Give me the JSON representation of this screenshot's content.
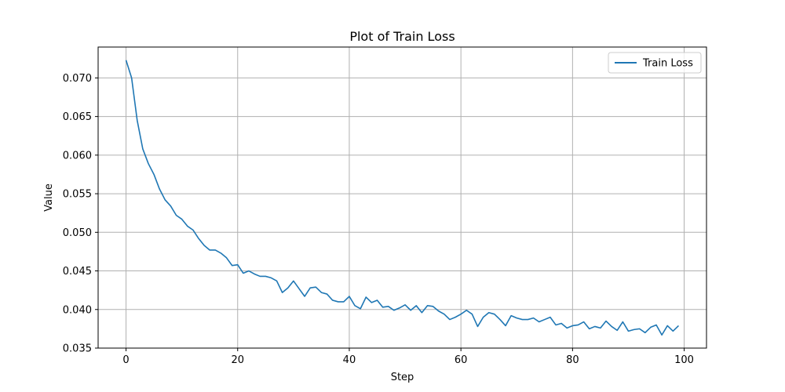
{
  "chart_data": {
    "type": "line",
    "title": "Plot of Train Loss",
    "xlabel": "Step",
    "ylabel": "Value",
    "xlim": [
      -5,
      104
    ],
    "ylim": [
      0.035,
      0.074
    ],
    "xticks": [
      0,
      20,
      40,
      60,
      80,
      100
    ],
    "yticks": [
      0.035,
      0.04,
      0.045,
      0.05,
      0.055,
      0.06,
      0.065,
      0.07
    ],
    "xtick_labels": [
      "0",
      "20",
      "40",
      "60",
      "80",
      "100"
    ],
    "ytick_labels": [
      "0.035",
      "0.040",
      "0.045",
      "0.050",
      "0.055",
      "0.060",
      "0.065",
      "0.070"
    ],
    "grid": true,
    "legend_position": "top-right",
    "series": [
      {
        "name": "Train Loss",
        "color": "#1f77b4",
        "x": [
          0,
          1,
          2,
          3,
          4,
          5,
          6,
          7,
          8,
          9,
          10,
          11,
          12,
          13,
          14,
          15,
          16,
          17,
          18,
          19,
          20,
          21,
          22,
          23,
          24,
          25,
          26,
          27,
          28,
          29,
          30,
          31,
          32,
          33,
          34,
          35,
          36,
          37,
          38,
          39,
          40,
          41,
          42,
          43,
          44,
          45,
          46,
          47,
          48,
          49,
          50,
          51,
          52,
          53,
          54,
          55,
          56,
          57,
          58,
          59,
          60,
          61,
          62,
          63,
          64,
          65,
          66,
          67,
          68,
          69,
          70,
          71,
          72,
          73,
          74,
          75,
          76,
          77,
          78,
          79,
          80,
          81,
          82,
          83,
          84,
          85,
          86,
          87,
          88,
          89,
          90,
          91,
          92,
          93,
          94,
          95,
          96,
          97,
          98,
          99
        ],
        "values": [
          0.0723,
          0.07,
          0.0645,
          0.0608,
          0.0589,
          0.0575,
          0.0556,
          0.0542,
          0.0534,
          0.0522,
          0.0517,
          0.0508,
          0.0503,
          0.0492,
          0.0483,
          0.0477,
          0.0477,
          0.0473,
          0.0467,
          0.0457,
          0.0458,
          0.0447,
          0.045,
          0.0446,
          0.0443,
          0.0443,
          0.0441,
          0.0437,
          0.0422,
          0.0428,
          0.0437,
          0.0427,
          0.0417,
          0.0428,
          0.0429,
          0.0422,
          0.042,
          0.0412,
          0.041,
          0.041,
          0.0417,
          0.0405,
          0.0401,
          0.0416,
          0.0409,
          0.0412,
          0.0403,
          0.0404,
          0.0399,
          0.0402,
          0.0406,
          0.0399,
          0.0405,
          0.0396,
          0.0405,
          0.0404,
          0.0398,
          0.0394,
          0.0387,
          0.039,
          0.0394,
          0.0399,
          0.0394,
          0.0378,
          0.039,
          0.0396,
          0.0394,
          0.0387,
          0.0379,
          0.0392,
          0.0389,
          0.0387,
          0.0387,
          0.0389,
          0.0384,
          0.0387,
          0.039,
          0.038,
          0.0382,
          0.0376,
          0.0379,
          0.038,
          0.0384,
          0.0375,
          0.0378,
          0.0376,
          0.0385,
          0.0378,
          0.0373,
          0.0384,
          0.0372,
          0.0374,
          0.0375,
          0.037,
          0.0377,
          0.038,
          0.0367,
          0.0379,
          0.0372,
          0.0379
        ]
      }
    ]
  }
}
